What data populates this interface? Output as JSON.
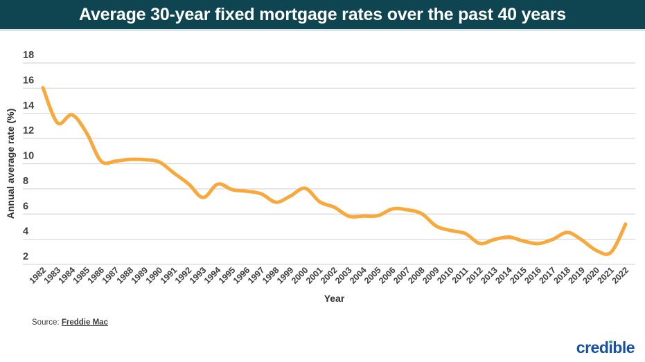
{
  "header": {
    "title": "Average 30-year fixed mortgage rates over the past 40 years"
  },
  "chart_data": {
    "type": "line",
    "title": "Average 30-year fixed mortgage rates over the past 40 years",
    "xlabel": "Year",
    "ylabel": "Annual average rate (%)",
    "x": [
      1982,
      1983,
      1984,
      1985,
      1986,
      1987,
      1988,
      1989,
      1990,
      1991,
      1992,
      1993,
      1994,
      1995,
      1996,
      1997,
      1998,
      1999,
      2000,
      2001,
      2002,
      2003,
      2004,
      2005,
      2006,
      2007,
      2008,
      2009,
      2010,
      2011,
      2012,
      2013,
      2014,
      2015,
      2016,
      2017,
      2018,
      2019,
      2020,
      2021,
      2022
    ],
    "values": [
      16.04,
      13.24,
      13.88,
      12.43,
      10.19,
      10.21,
      10.34,
      10.32,
      10.13,
      9.25,
      8.39,
      7.31,
      8.38,
      7.93,
      7.81,
      7.6,
      6.94,
      7.44,
      8.05,
      6.97,
      6.54,
      5.83,
      5.84,
      5.87,
      6.41,
      6.34,
      6.03,
      5.04,
      4.69,
      4.45,
      3.66,
      3.98,
      4.17,
      3.85,
      3.65,
      3.99,
      4.54,
      3.94,
      3.1,
      2.96,
      5.2
    ],
    "ylim": [
      2,
      18
    ],
    "yticks": [
      2,
      4,
      6,
      8,
      10,
      12,
      14,
      16,
      18
    ],
    "grid": true,
    "legend_position": "none",
    "smoothed": true
  },
  "footer": {
    "source_prefix": "Source:",
    "source_link_text": "Freddie Mac",
    "logo_text": "credible"
  },
  "colors": {
    "header_bg": "#0E4551",
    "line": "#F9A83B",
    "gridline": "#D8D8D8",
    "axis_text": "#3D3D3D",
    "logo_blue": "#1750A4",
    "logo_dot_green": "#2AB573"
  }
}
